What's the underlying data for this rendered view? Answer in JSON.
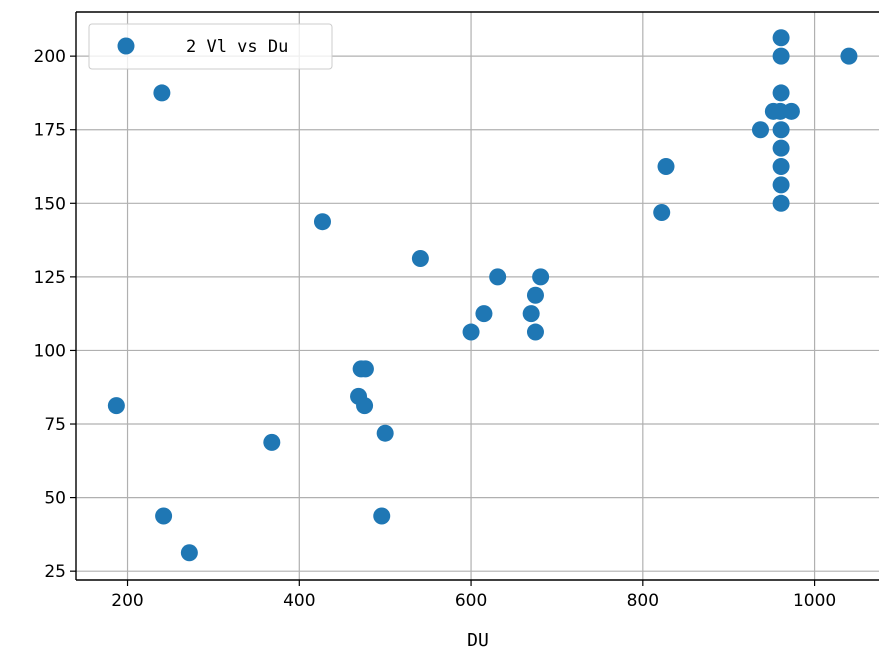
{
  "chart_data": {
    "type": "scatter",
    "xlabel": "DU",
    "ylabel": "",
    "xlim": [
      140,
      1075
    ],
    "ylim": [
      22,
      215
    ],
    "xticks": [
      200,
      400,
      600,
      800,
      1000
    ],
    "yticks": [
      25,
      50,
      75,
      100,
      125,
      150,
      175,
      200
    ],
    "grid": true,
    "legend_position": "top-left",
    "series": [
      {
        "name": "2 Vl vs Du",
        "color": "#1f77b4",
        "points": [
          [
            187,
            81.25
          ],
          [
            242,
            43.75
          ],
          [
            240,
            187.5
          ],
          [
            272,
            31.25
          ],
          [
            368,
            68.75
          ],
          [
            427,
            143.75
          ],
          [
            469,
            84.38
          ],
          [
            472,
            93.75
          ],
          [
            477,
            93.75
          ],
          [
            476,
            81.25
          ],
          [
            496,
            43.75
          ],
          [
            500,
            71.88
          ],
          [
            541,
            131.25
          ],
          [
            600,
            106.25
          ],
          [
            615,
            112.5
          ],
          [
            631,
            125
          ],
          [
            670,
            112.5
          ],
          [
            675,
            118.75
          ],
          [
            675,
            106.25
          ],
          [
            681,
            125
          ],
          [
            822,
            146.88
          ],
          [
            827,
            162.5
          ],
          [
            937,
            175
          ],
          [
            952,
            181.25
          ],
          [
            960,
            181.25
          ],
          [
            961,
            206.25
          ],
          [
            961,
            200
          ],
          [
            961,
            187.5
          ],
          [
            961,
            175
          ],
          [
            961,
            168.75
          ],
          [
            961,
            162.5
          ],
          [
            961,
            156.25
          ],
          [
            961,
            150
          ],
          [
            973,
            181.25
          ],
          [
            1040,
            200
          ]
        ]
      }
    ]
  }
}
